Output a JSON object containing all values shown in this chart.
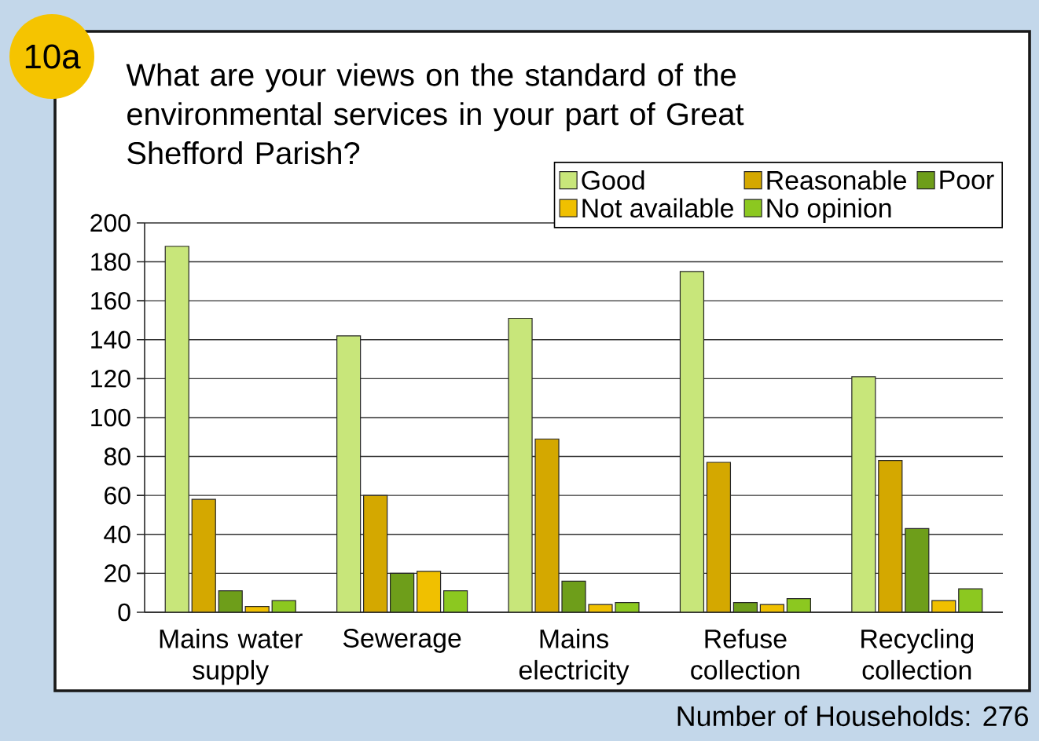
{
  "chart_data": {
    "type": "bar",
    "title": "What are your views on the standard of the environmental services in your part of Great Shefford Parish?",
    "categories": [
      "Mains water supply",
      "Sewerage",
      "Mains electricity",
      "Refuse collection",
      "Recycling collection"
    ],
    "series": [
      {
        "name": "Good",
        "color": "#c8e67a",
        "values": [
          188,
          142,
          151,
          175,
          121
        ]
      },
      {
        "name": "Reasonable",
        "color": "#d4a800",
        "values": [
          58,
          60,
          89,
          77,
          78
        ]
      },
      {
        "name": "Poor",
        "color": "#6e9e1a",
        "values": [
          11,
          20,
          16,
          5,
          43
        ]
      },
      {
        "name": "Not available",
        "color": "#f0c000",
        "values": [
          3,
          21,
          4,
          4,
          6
        ]
      },
      {
        "name": "No opinion",
        "color": "#8cc820",
        "values": [
          6,
          11,
          5,
          7,
          12
        ]
      }
    ],
    "ylim": [
      0,
      200
    ],
    "yticks": [
      0,
      20,
      40,
      60,
      80,
      100,
      120,
      140,
      160,
      180,
      200
    ],
    "grid": "y",
    "legend": "top right",
    "annotations": [
      "10a",
      "Number of Households: 276"
    ]
  }
}
